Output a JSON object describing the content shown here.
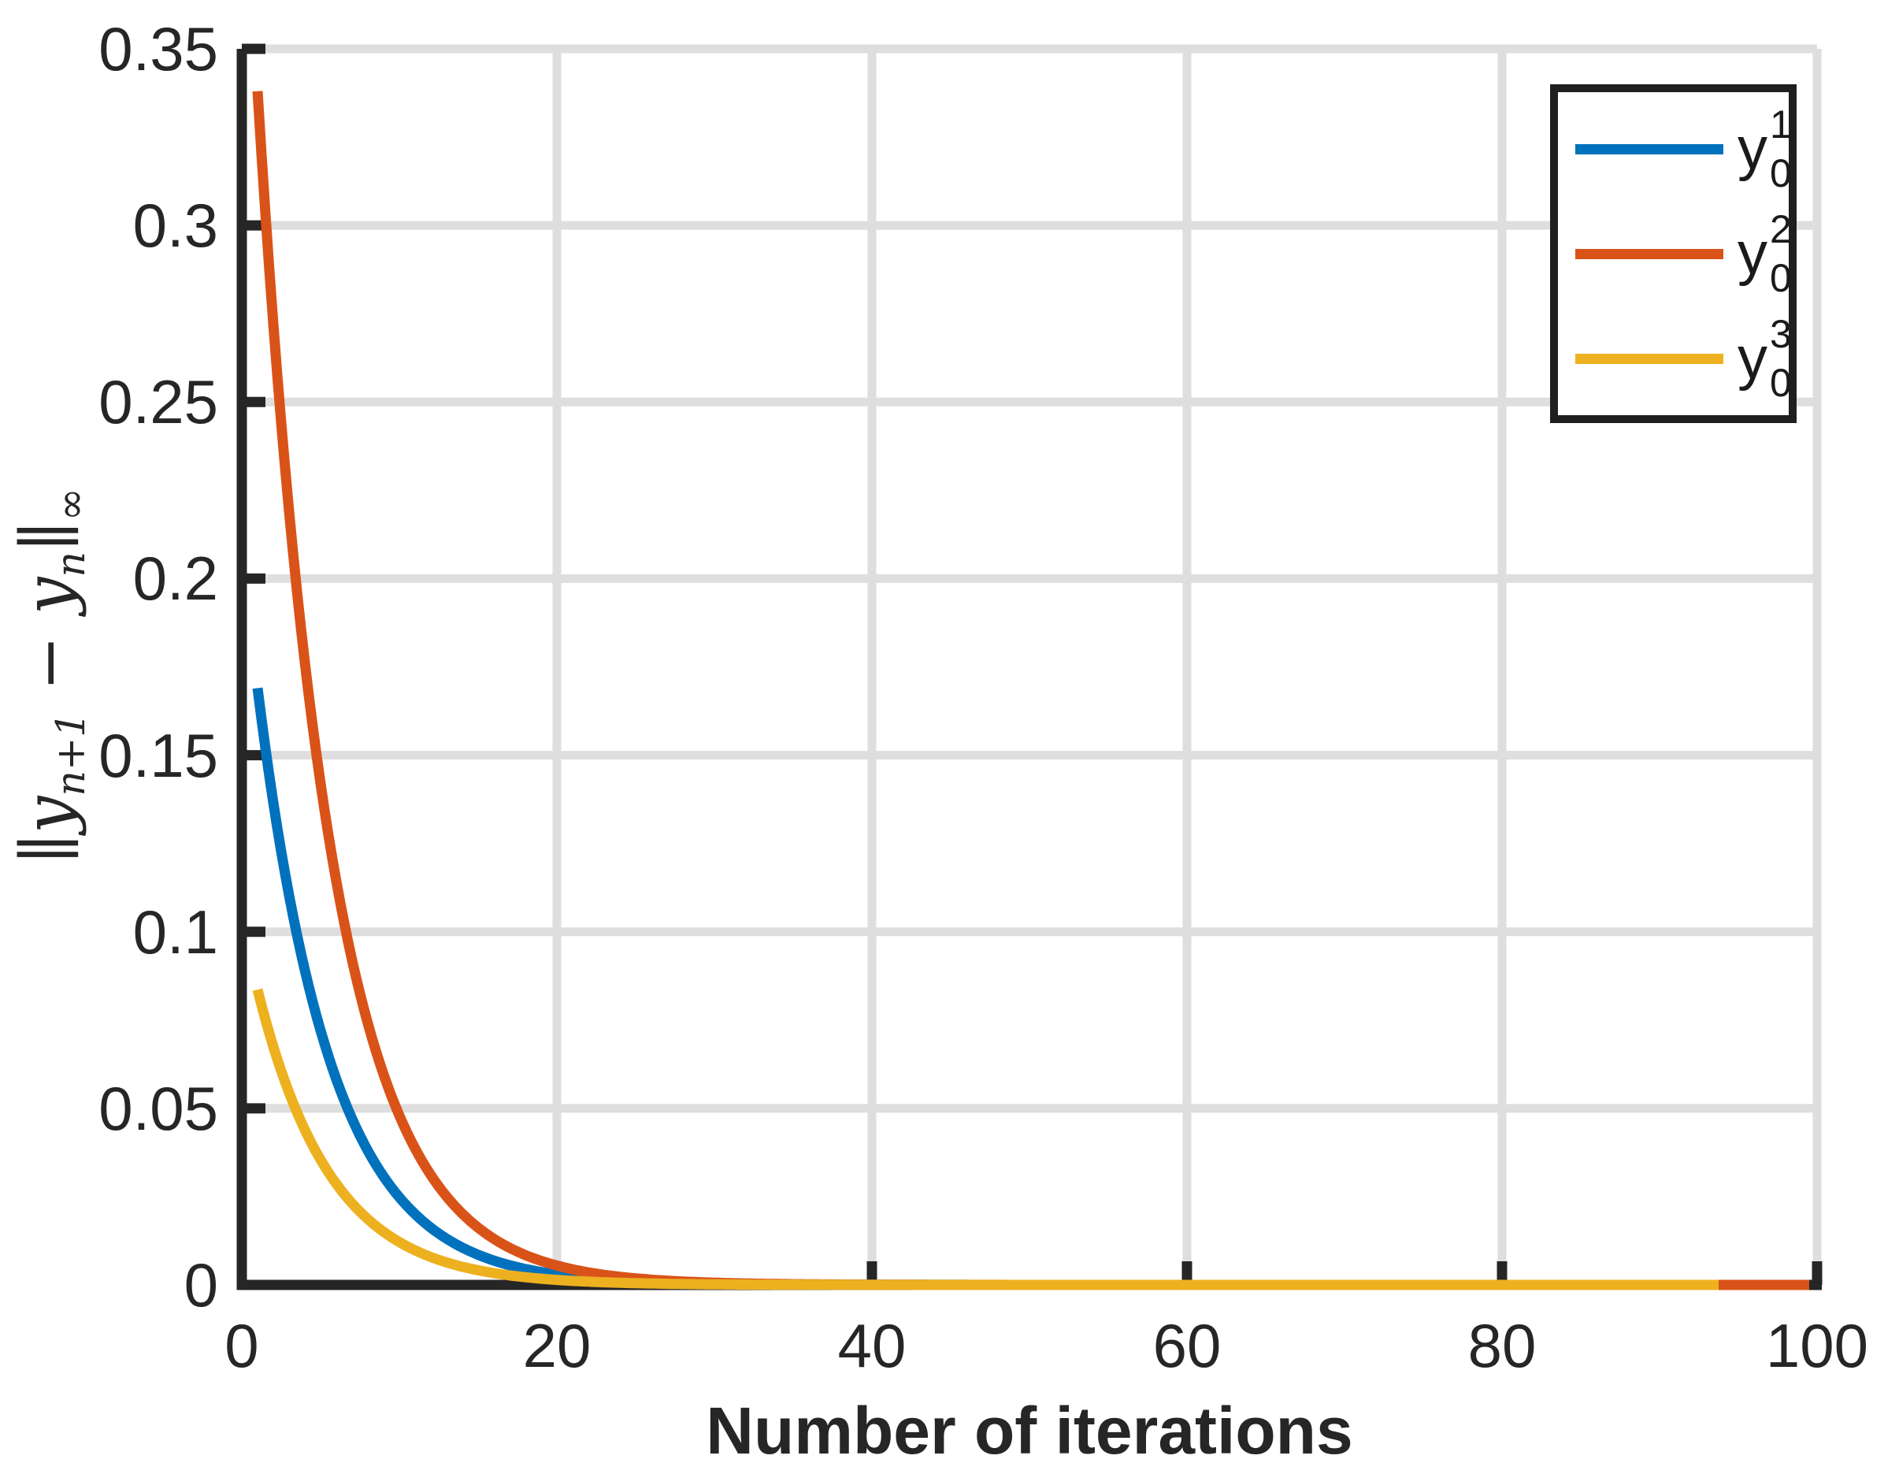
{
  "styles": {
    "background": "#FFFFFF",
    "axis_color": "#262626",
    "grid_color": "#DEDEDE",
    "tick_label_color": "#262626",
    "legend_border_color": "#1F1F1F",
    "legend_background": "#FFFFFF"
  },
  "chart_data": {
    "type": "line",
    "title": "",
    "xlabel": "Number of iterations",
    "ylabel": "||y_(n+1) - y_n||_inf",
    "ylabel_parts": [
      {
        "text": "∥y",
        "script": false
      },
      {
        "text": "n+1",
        "script": true
      },
      {
        "text": " − y",
        "script": false
      },
      {
        "text": "n",
        "script": true
      },
      {
        "text": "∥",
        "script": false
      },
      {
        "text": "∞",
        "script": true
      }
    ],
    "xlim": [
      0,
      100
    ],
    "ylim": [
      0,
      0.35
    ],
    "xticks": [
      0,
      20,
      40,
      60,
      80,
      100
    ],
    "xtick_labels": [
      "0",
      "20",
      "40",
      "60",
      "80",
      "100"
    ],
    "yticks": [
      0,
      0.05,
      0.1,
      0.15,
      0.2,
      0.25,
      0.3,
      0.35
    ],
    "ytick_labels": [
      "0",
      "0.05",
      "0.1",
      "0.15",
      "0.2",
      "0.25",
      "0.3",
      "0.35"
    ],
    "grid": true,
    "legend_position": "northeast",
    "series": [
      {
        "id": "y0-1",
        "name": "y_0^1",
        "color": "#0072BD",
        "model": "exponential_decay",
        "x_start": 1,
        "x_end": 99,
        "initial_value": 0.169,
        "decay_ratio": 0.808,
        "sample_n": [
          1,
          2,
          3,
          4,
          5,
          6,
          7,
          8,
          9,
          10,
          15,
          20,
          30
        ],
        "sample_values": [
          0.169,
          0.1366,
          0.1103,
          0.0892,
          0.072,
          0.0582,
          0.047,
          0.038,
          0.0307,
          0.0248,
          0.0085,
          0.0029,
          0.0004
        ]
      },
      {
        "id": "y0-2",
        "name": "y_0^2",
        "color": "#D95319",
        "model": "exponential_decay",
        "x_start": 1,
        "x_end": 99.7,
        "initial_value": 0.338,
        "decay_ratio": 0.805,
        "sample_n": [
          1,
          2,
          3,
          4,
          5,
          6,
          7,
          8,
          9,
          10,
          15,
          20,
          30
        ],
        "sample_values": [
          0.338,
          0.2721,
          0.219,
          0.1763,
          0.1419,
          0.1142,
          0.092,
          0.074,
          0.0596,
          0.048,
          0.0162,
          0.0055,
          0.0006
        ]
      },
      {
        "id": "y0-3",
        "name": "y_0^3",
        "color": "#EDB120",
        "model": "exponential_decay",
        "x_start": 1,
        "x_end": 93.75,
        "initial_value": 0.0836,
        "decay_ratio": 0.807,
        "sample_n": [
          1,
          2,
          3,
          4,
          5,
          6,
          7,
          8,
          9,
          10,
          15,
          20,
          30
        ],
        "sample_values": [
          0.0836,
          0.0675,
          0.0544,
          0.0439,
          0.0355,
          0.0286,
          0.0231,
          0.0186,
          0.015,
          0.0121,
          0.0042,
          0.0014,
          0.0002
        ]
      }
    ]
  },
  "legend": {
    "entries": [
      {
        "base": "y",
        "sup": "1",
        "sub": "0",
        "color": "#0072BD"
      },
      {
        "base": "y",
        "sup": "2",
        "sub": "0",
        "color": "#D95319"
      },
      {
        "base": "y",
        "sup": "3",
        "sub": "0",
        "color": "#EDB120"
      }
    ]
  }
}
